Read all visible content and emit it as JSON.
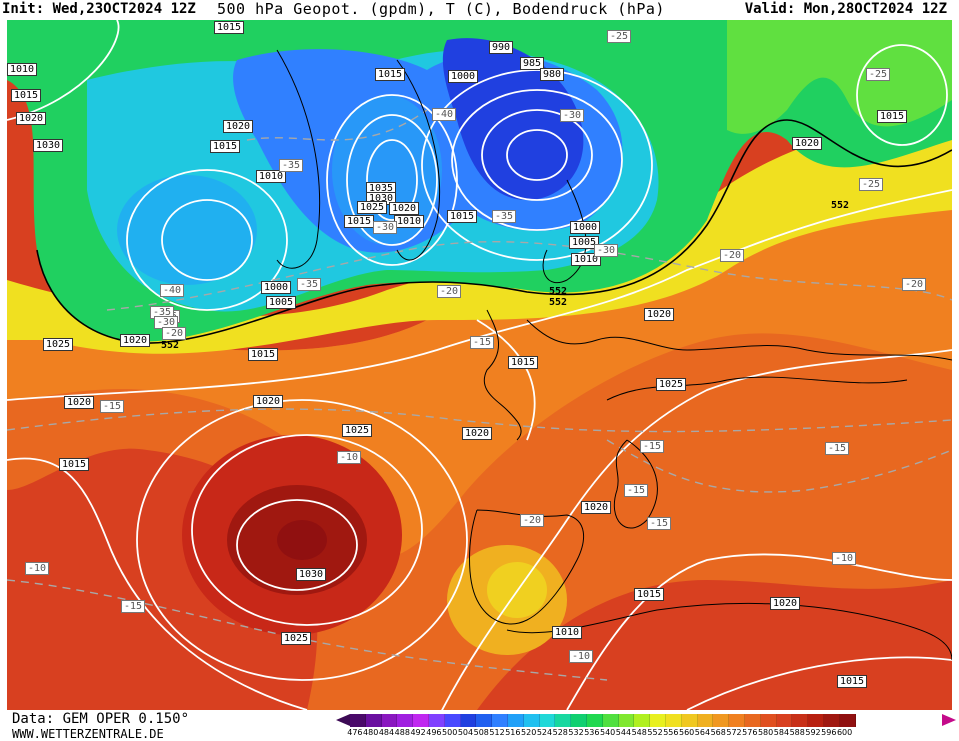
{
  "header": {
    "init": "Init: Wed,23OCT2024 12Z",
    "title": "500 hPa Geopot. (gpdm), T (C), Bodendruck (hPa)",
    "valid": "Valid: Mon,28OCT2024 12Z"
  },
  "footer": {
    "data": "Data: GEM OPER 0.150°",
    "site": "WWW.WETTERZENTRALE.DE"
  },
  "colors": {
    "deep_blue": "#2040e0",
    "blue": "#3080ff",
    "cyan": "#20c8e8",
    "green": "#10d070",
    "light_green": "#50e040",
    "yellow": "#f0e020",
    "orange": "#f09020",
    "orange_red": "#e06020",
    "red": "#c82810",
    "dark_red": "#901010",
    "contour": "#ffffff"
  },
  "colorbar": {
    "ticks": [
      "476",
      "480",
      "484",
      "488",
      "492",
      "496",
      "500",
      "504",
      "508",
      "512",
      "516",
      "520",
      "524",
      "528",
      "532",
      "536",
      "540",
      "544",
      "548",
      "552",
      "556",
      "560",
      "564",
      "568",
      "572",
      "576",
      "580",
      "584",
      "588",
      "592",
      "596",
      "600"
    ],
    "colors": [
      "#4a0a6a",
      "#6a10a0",
      "#8a18c0",
      "#a020e0",
      "#c028f0",
      "#8040ff",
      "#4848ff",
      "#2040e0",
      "#2060f0",
      "#3080ff",
      "#20a0f8",
      "#20c0f0",
      "#20d8d8",
      "#18d8a0",
      "#10d070",
      "#20d850",
      "#50e040",
      "#80e830",
      "#b0f020",
      "#e8f020",
      "#f0e020",
      "#f0c820",
      "#f0b020",
      "#f09820",
      "#f08020",
      "#e86820",
      "#e05020",
      "#d84020",
      "#c83018",
      "#b82010",
      "#a01810",
      "#901010"
    ]
  },
  "labels": {
    "pressure": [
      "1015",
      "1010",
      "1015",
      "1020",
      "1030",
      "1020",
      "1015",
      "1010",
      "1015",
      "1000",
      "1005",
      "1020",
      "1025",
      "1015",
      "1035",
      "1030",
      "1025",
      "1020",
      "1010",
      "1015",
      "1000",
      "990",
      "985",
      "980",
      "1000",
      "1005",
      "1010",
      "1015",
      "1020",
      "1015",
      "1020",
      "1025",
      "1020",
      "1025",
      "1020",
      "1015",
      "1030",
      "1025",
      "1020",
      "1015",
      "1010",
      "1020",
      "1015",
      "1015",
      "1020"
    ],
    "geopot": [
      "552",
      "552",
      "552",
      "552"
    ],
    "temp": [
      "-25",
      "-25",
      "-25",
      "-40",
      "-30",
      "-35",
      "-35",
      "-30",
      "-35",
      "-30",
      "-20",
      "-20",
      "-15",
      "-15",
      "-10",
      "-15",
      "-15",
      "-15",
      "-15",
      "-20",
      "-10",
      "-10",
      "-15",
      "-10",
      "-15",
      "-20",
      "-40",
      "-35",
      "-30",
      "-20"
    ]
  }
}
